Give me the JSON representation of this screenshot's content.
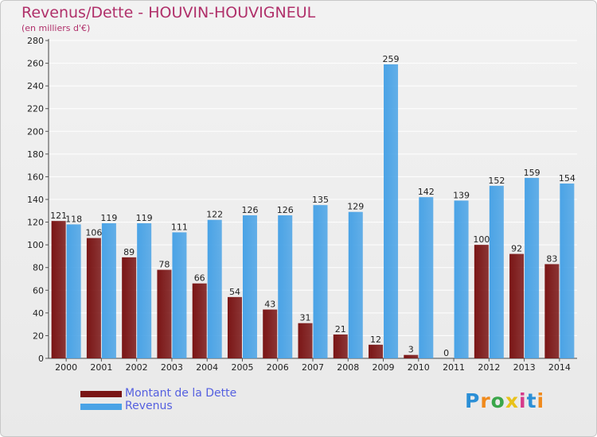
{
  "chart_data": {
    "type": "bar",
    "title": "Revenus/Dette - HOUVIN-HOUVIGNEUL",
    "subtitle": "(en milliers d'€)",
    "xlabel": "",
    "ylabel": "",
    "ylim": [
      0,
      280
    ],
    "yticks": [
      "0",
      "20",
      "40",
      "60",
      "80",
      "100",
      "120",
      "140",
      "160",
      "180",
      "200",
      "220",
      "240",
      "260",
      "280"
    ],
    "grid": true,
    "categories": [
      "2000",
      "2001",
      "2002",
      "2003",
      "2004",
      "2005",
      "2006",
      "2007",
      "2008",
      "2009",
      "2010",
      "2011",
      "2012",
      "2013",
      "2014"
    ],
    "series": [
      {
        "name": "Montant de la Dette",
        "color": "#7a1515",
        "values": [
          121,
          106,
          89,
          78,
          66,
          54,
          43,
          31,
          21,
          12,
          3,
          0,
          100,
          92,
          83
        ]
      },
      {
        "name": "Revenus",
        "color": "#4aa3e6",
        "values": [
          118,
          119,
          119,
          111,
          122,
          126,
          126,
          135,
          129,
          259,
          142,
          139,
          152,
          159,
          154
        ]
      }
    ],
    "legend_position": "bottom-left"
  },
  "logo_text": "Proxiti"
}
